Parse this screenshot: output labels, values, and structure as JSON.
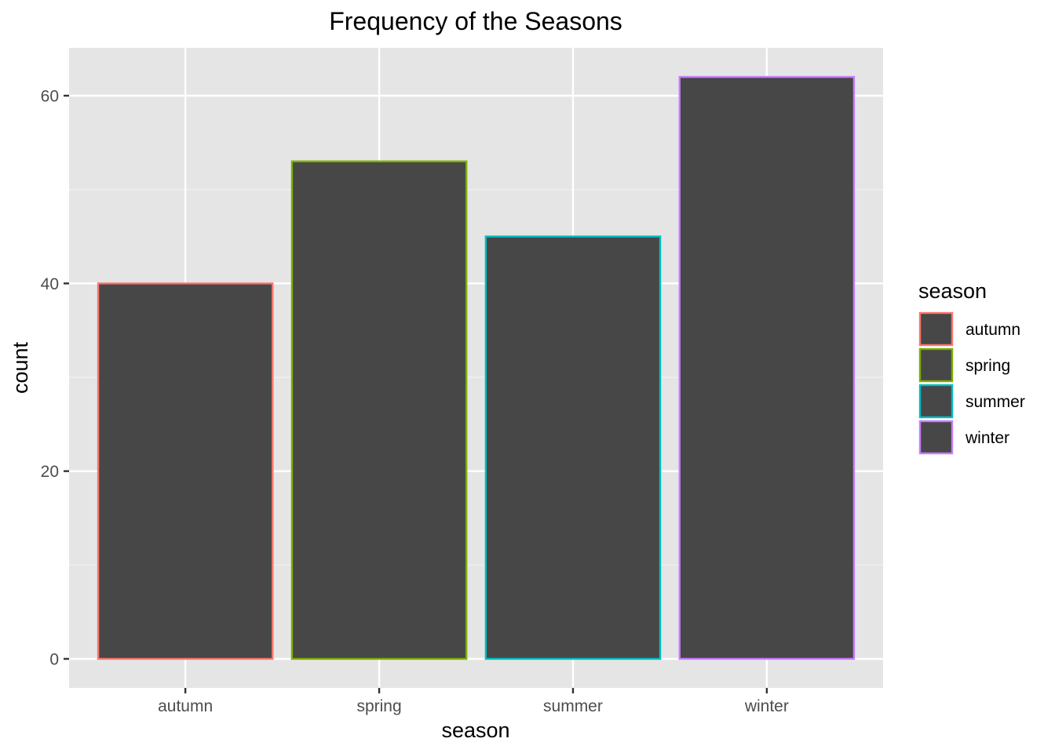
{
  "chart_data": {
    "type": "bar",
    "title": "Frequency of the Seasons",
    "xlabel": "season",
    "ylabel": "count",
    "categories": [
      "autumn",
      "spring",
      "summer",
      "winter"
    ],
    "values": [
      40,
      53,
      45,
      62
    ],
    "ylim": [
      0,
      65
    ],
    "yticks": [
      0,
      20,
      40,
      60
    ],
    "bar_fill": "#474747",
    "outline_colors": [
      "#F8766D",
      "#7CAE00",
      "#00BFC4",
      "#C77CFF"
    ],
    "panel_background": "#E5E5E5",
    "grid": true,
    "legend": {
      "title": "season",
      "position": "right",
      "entries": [
        "autumn",
        "spring",
        "summer",
        "winter"
      ]
    }
  }
}
